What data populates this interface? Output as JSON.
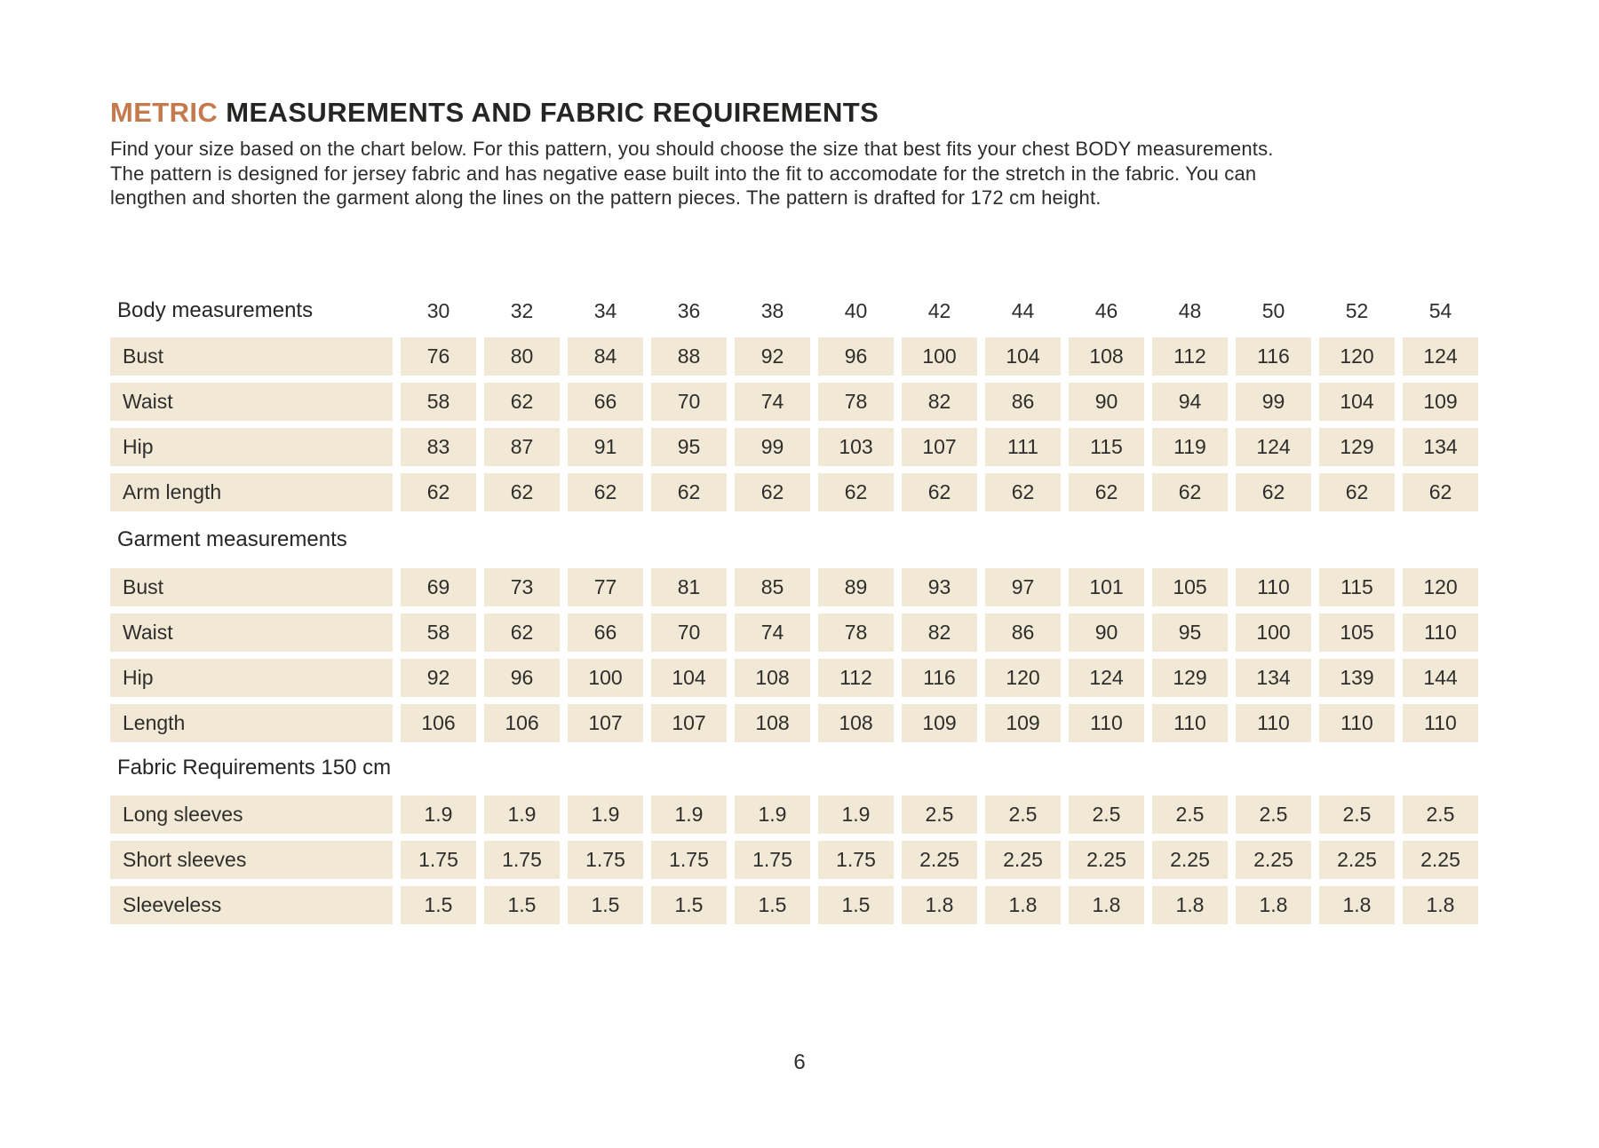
{
  "page": {
    "title": {
      "highlight": "METRIC",
      "rest": "MEASUREMENTS AND FABRIC REQUIREMENTS"
    },
    "intro_lines": [
      "Find your size based on the chart below. For this pattern, you should choose the size that best fits your chest BODY measurements.",
      "The pattern is designed for jersey fabric and has negative ease built into the fit to accomodate for the stretch in the fabric. You can",
      "lengthen and shorten the garment along the lines on the pattern pieces. The pattern is drafted for 172 cm height."
    ],
    "page_number": "6"
  },
  "colors": {
    "accent": "#c57a4e",
    "cell_bg": "#f1e9d6",
    "ink": "#2e2d2b"
  },
  "table": {
    "sizes": [
      "30",
      "32",
      "34",
      "36",
      "38",
      "40",
      "42",
      "44",
      "46",
      "48",
      "50",
      "52",
      "54"
    ],
    "sections": [
      {
        "header": "Body measurements",
        "show_sizes": true,
        "rows": [
          {
            "label": "Bust",
            "values": [
              "76",
              "80",
              "84",
              "88",
              "92",
              "96",
              "100",
              "104",
              "108",
              "112",
              "116",
              "120",
              "124"
            ]
          },
          {
            "label": "Waist",
            "values": [
              "58",
              "62",
              "66",
              "70",
              "74",
              "78",
              "82",
              "86",
              "90",
              "94",
              "99",
              "104",
              "109"
            ]
          },
          {
            "label": "Hip",
            "values": [
              "83",
              "87",
              "91",
              "95",
              "99",
              "103",
              "107",
              "111",
              "115",
              "119",
              "124",
              "129",
              "134"
            ]
          },
          {
            "label": "Arm length",
            "values": [
              "62",
              "62",
              "62",
              "62",
              "62",
              "62",
              "62",
              "62",
              "62",
              "62",
              "62",
              "62",
              "62"
            ]
          }
        ]
      },
      {
        "header": "Garment measurements",
        "show_sizes": false,
        "rows": [
          {
            "label": "Bust",
            "values": [
              "69",
              "73",
              "77",
              "81",
              "85",
              "89",
              "93",
              "97",
              "101",
              "105",
              "110",
              "115",
              "120"
            ]
          },
          {
            "label": "Waist",
            "values": [
              "58",
              "62",
              "66",
              "70",
              "74",
              "78",
              "82",
              "86",
              "90",
              "95",
              "100",
              "105",
              "110"
            ]
          },
          {
            "label": "Hip",
            "values": [
              "92",
              "96",
              "100",
              "104",
              "108",
              "112",
              "116",
              "120",
              "124",
              "129",
              "134",
              "139",
              "144"
            ]
          },
          {
            "label": "Length",
            "values": [
              "106",
              "106",
              "107",
              "107",
              "108",
              "108",
              "109",
              "109",
              "110",
              "110",
              "110",
              "110",
              "110"
            ]
          }
        ]
      },
      {
        "header": "Fabric Requirements 150 cm",
        "show_sizes": false,
        "rows": [
          {
            "label": "Long sleeves",
            "values": [
              "1.9",
              "1.9",
              "1.9",
              "1.9",
              "1.9",
              "1.9",
              "2.5",
              "2.5",
              "2.5",
              "2.5",
              "2.5",
              "2.5",
              "2.5"
            ]
          },
          {
            "label": "Short sleeves",
            "values": [
              "1.75",
              "1.75",
              "1.75",
              "1.75",
              "1.75",
              "1.75",
              "2.25",
              "2.25",
              "2.25",
              "2.25",
              "2.25",
              "2.25",
              "2.25"
            ]
          },
          {
            "label": "Sleeveless",
            "values": [
              "1.5",
              "1.5",
              "1.5",
              "1.5",
              "1.5",
              "1.5",
              "1.8",
              "1.8",
              "1.8",
              "1.8",
              "1.8",
              "1.8",
              "1.8"
            ]
          }
        ]
      }
    ]
  }
}
